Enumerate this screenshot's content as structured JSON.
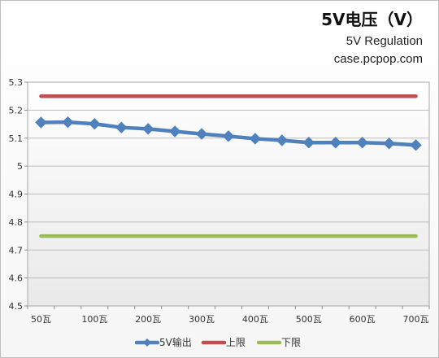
{
  "header": {
    "title": "5V电压（V）",
    "subtitle_line1": "5V Regulation",
    "subtitle_line2": "case.pcpop.com"
  },
  "chart_data": {
    "type": "line",
    "categories": [
      "50瓦",
      "",
      "100瓦",
      "",
      "200瓦",
      "",
      "300瓦",
      "",
      "400瓦",
      "",
      "500瓦",
      "",
      "600瓦",
      "",
      "700瓦"
    ],
    "series": [
      {
        "name": "5V输出",
        "color": "#4f81bd",
        "marker": "diamond",
        "values": [
          5.156,
          5.157,
          5.151,
          5.138,
          5.133,
          5.124,
          5.115,
          5.107,
          5.098,
          5.092,
          5.084,
          5.084,
          5.084,
          5.081,
          5.075
        ]
      },
      {
        "name": "上限",
        "color": "#c0504d",
        "marker": "none",
        "values": [
          5.25,
          5.25,
          5.25,
          5.25,
          5.25,
          5.25,
          5.25,
          5.25,
          5.25,
          5.25,
          5.25,
          5.25,
          5.25,
          5.25,
          5.25
        ]
      },
      {
        "name": "下限",
        "color": "#9bbb59",
        "marker": "none",
        "values": [
          4.75,
          4.75,
          4.75,
          4.75,
          4.75,
          4.75,
          4.75,
          4.75,
          4.75,
          4.75,
          4.75,
          4.75,
          4.75,
          4.75,
          4.75
        ]
      }
    ],
    "y_ticks": [
      "5.3",
      "5.2",
      "5.1",
      "5",
      "4.9",
      "4.8",
      "4.7",
      "4.6",
      "4.5"
    ],
    "ylim": [
      4.5,
      5.3
    ],
    "grid": true,
    "legend_position": "bottom"
  }
}
